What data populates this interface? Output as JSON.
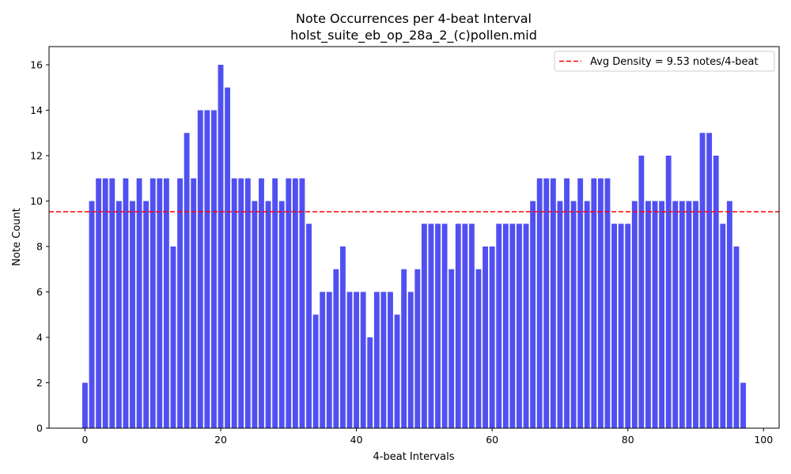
{
  "chart_data": {
    "type": "bar",
    "title": "Note Occurrences per 4-beat Interval",
    "subtitle": "holst_suite_eb_op_28a_2_(c)pollen.mid",
    "xlabel": "4-beat Intervals",
    "ylabel": "Note Count",
    "xlim": [
      -5.3,
      102.3
    ],
    "ylim": [
      0,
      16.8
    ],
    "xticks": [
      0,
      20,
      40,
      60,
      80,
      100
    ],
    "yticks": [
      0,
      2,
      4,
      6,
      8,
      10,
      12,
      14,
      16
    ],
    "grid": false,
    "legend_position": "top-right",
    "bar_color": "#5050f2",
    "x": [
      0,
      1,
      2,
      3,
      4,
      5,
      6,
      7,
      8,
      9,
      10,
      11,
      12,
      13,
      14,
      15,
      16,
      17,
      18,
      19,
      20,
      21,
      22,
      23,
      24,
      25,
      26,
      27,
      28,
      29,
      30,
      31,
      32,
      33,
      34,
      35,
      36,
      37,
      38,
      39,
      40,
      41,
      42,
      43,
      44,
      45,
      46,
      47,
      48,
      49,
      50,
      51,
      52,
      53,
      54,
      55,
      56,
      57,
      58,
      59,
      60,
      61,
      62,
      63,
      64,
      65,
      66,
      67,
      68,
      69,
      70,
      71,
      72,
      73,
      74,
      75,
      76,
      77,
      78,
      79,
      80,
      81,
      82,
      83,
      84,
      85,
      86,
      87,
      88,
      89,
      90,
      91,
      92,
      93,
      94,
      95,
      96,
      97
    ],
    "values": [
      2,
      10,
      11,
      11,
      11,
      10,
      11,
      10,
      11,
      10,
      11,
      11,
      11,
      8,
      11,
      13,
      11,
      14,
      14,
      14,
      16,
      15,
      11,
      11,
      11,
      10,
      11,
      10,
      11,
      10,
      11,
      11,
      11,
      9,
      5,
      6,
      6,
      7,
      8,
      6,
      6,
      6,
      4,
      6,
      6,
      6,
      5,
      7,
      6,
      7,
      9,
      9,
      9,
      9,
      7,
      9,
      9,
      9,
      7,
      8,
      8,
      9,
      9,
      9,
      9,
      9,
      10,
      11,
      11,
      11,
      10,
      11,
      10,
      11,
      10,
      11,
      11,
      11,
      9,
      9,
      9,
      10,
      12,
      10,
      10,
      10,
      12,
      10,
      10,
      10,
      10,
      13,
      13,
      12,
      9,
      10,
      8,
      2
    ],
    "reference_line": {
      "value": 9.53,
      "label": "Avg Density = 9.53 notes/4-beat",
      "color": "#ff0000",
      "style": "dashed"
    }
  }
}
